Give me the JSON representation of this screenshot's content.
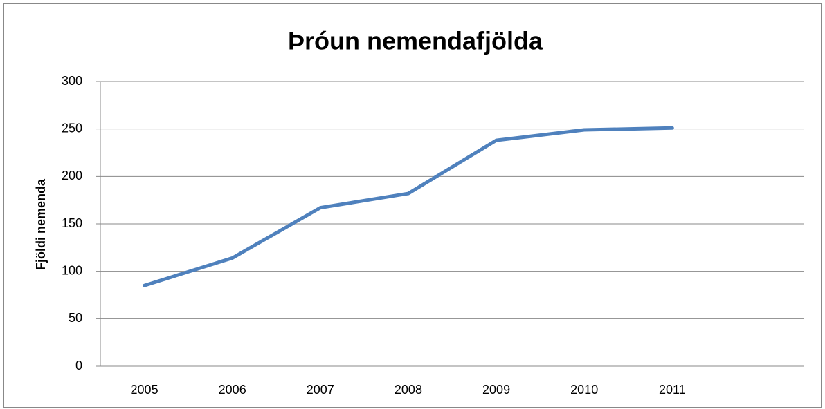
{
  "chart_data": {
    "type": "line",
    "title": "Þróun nemendafjölda",
    "y_label": "Fjöldi nemenda",
    "categories": [
      "2005",
      "2006",
      "2007",
      "2008",
      "2009",
      "2010",
      "2011",
      null
    ],
    "series": [
      {
        "name": "Fjöldi nemenda",
        "color": "#4f81bd",
        "values": [
          85,
          114,
          167,
          182,
          238,
          249,
          251,
          null
        ]
      }
    ],
    "ylim": [
      0,
      300
    ],
    "yticks": [
      0,
      50,
      100,
      150,
      200,
      250,
      300
    ],
    "grid": true
  }
}
